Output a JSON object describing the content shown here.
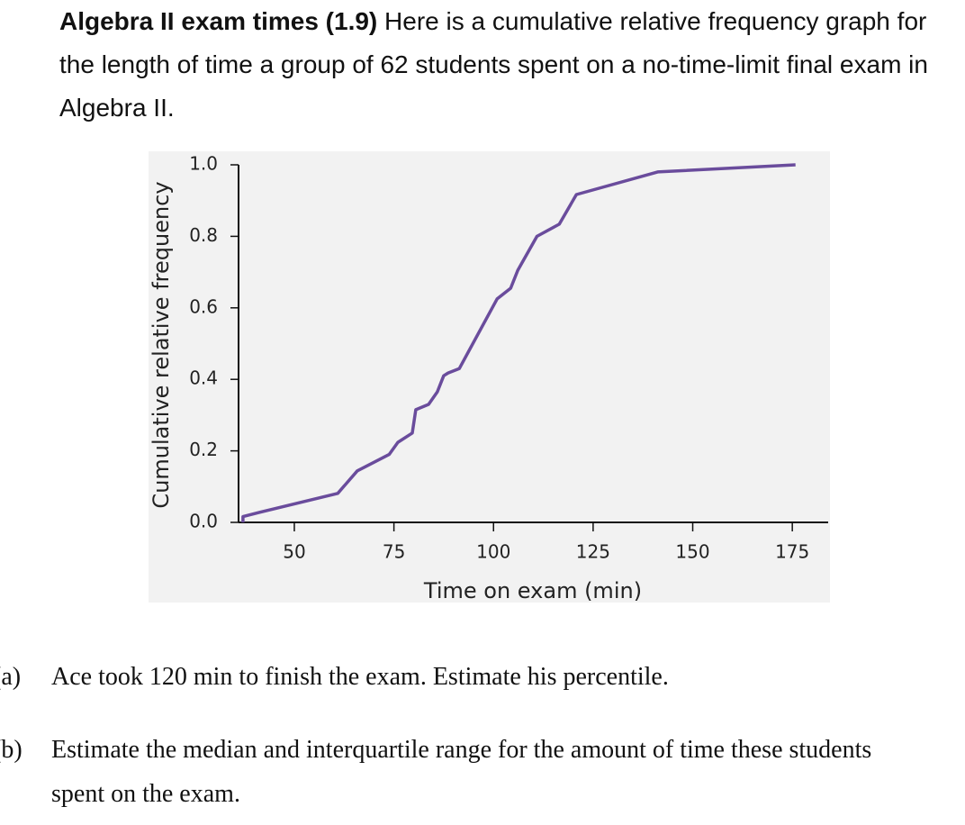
{
  "header": {
    "label": "Algebra II exam times (1.9)",
    "text": "Here is a cumulative relative frequency graph for the length of time a group of 62 students spent on a no-time-limit final exam in Algebra II."
  },
  "chart_data": {
    "type": "line",
    "xlabel": "Time on exam (min)",
    "ylabel": "Cumulative relative frequency",
    "x": [
      37.1,
      37.1,
      41.2,
      60.9,
      65.8,
      73.8,
      76,
      79.6,
      80.5,
      83.7,
      85.9,
      87.5,
      88.6,
      91.4,
      100.9,
      104.3,
      106.1,
      110.9,
      116.5,
      120.8,
      141.2,
      175.8
    ],
    "values": [
      0.0,
      0.016,
      0.028,
      0.081,
      0.144,
      0.19,
      0.224,
      0.25,
      0.315,
      0.33,
      0.365,
      0.41,
      0.418,
      0.43,
      0.625,
      0.655,
      0.705,
      0.8,
      0.834,
      0.917,
      0.98,
      1.0
    ],
    "color": "#6a4c9c",
    "xlim": [
      36,
      184
    ],
    "xticks": [
      50,
      75,
      100,
      125,
      150,
      175
    ],
    "ylim": [
      0,
      1
    ],
    "yticks": [
      {
        "value": 0,
        "label": "0.0"
      },
      0.2,
      0.4,
      0.6,
      0.8,
      {
        "value": 1,
        "label": "1.0"
      }
    ]
  },
  "questions": [
    {
      "label": "(a)",
      "text": "Ace took 120 min to finish the exam. Estimate his percentile."
    },
    {
      "label": "(b)",
      "text": "Estimate the median and interquartile range for the amount of time these students spent on the exam."
    }
  ]
}
